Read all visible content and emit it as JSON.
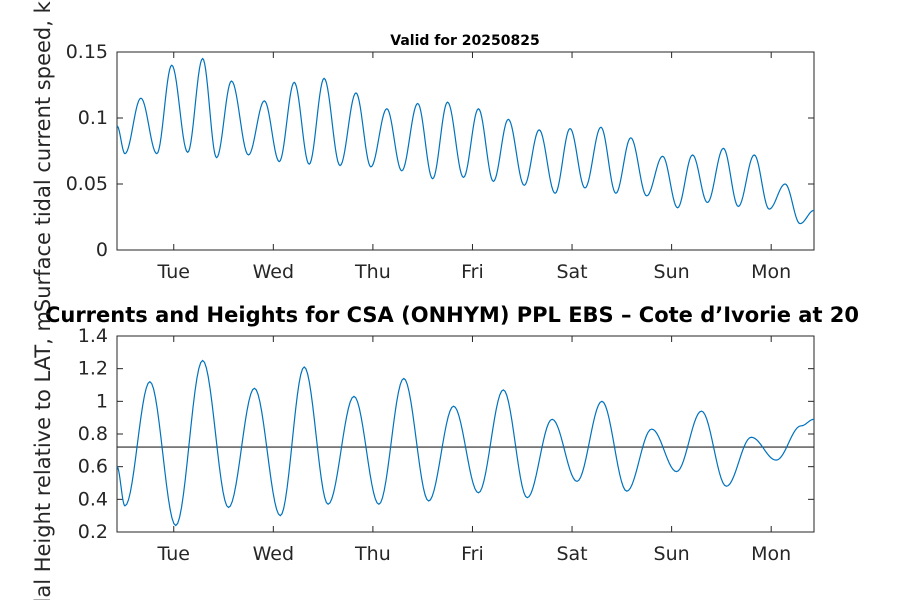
{
  "chart_data": [
    {
      "type": "line",
      "title": "Valid for 20250825",
      "ylabel": "Surface tidal current speed, kn",
      "xlabel": "",
      "xtick_labels": [
        "Tue",
        "Wed",
        "Thu",
        "Fri",
        "Sat",
        "Sun",
        "Mon"
      ],
      "xlim": [
        0,
        7
      ],
      "ylim": [
        0,
        0.15
      ],
      "yticks": [
        0,
        0.05,
        0.1,
        0.15
      ],
      "ytick_labels": [
        "0",
        "0.05",
        "0.1",
        "0.15"
      ],
      "grid": false,
      "series": [
        {
          "color": "#0072BD",
          "x": [
            0.0,
            0.08,
            0.24,
            0.4,
            0.55,
            0.71,
            0.86,
            1.0,
            1.15,
            1.32,
            1.48,
            1.63,
            1.78,
            1.93,
            2.08,
            2.24,
            2.4,
            2.55,
            2.71,
            2.86,
            3.02,
            3.17,
            3.32,
            3.48,
            3.63,
            3.78,
            3.93,
            4.09,
            4.24,
            4.4,
            4.55,
            4.7,
            4.86,
            5.01,
            5.16,
            5.32,
            5.48,
            5.63,
            5.78,
            5.93,
            6.09,
            6.24,
            6.4,
            6.55,
            6.71,
            6.86,
            7.0
          ],
          "y": [
            0.094,
            0.073,
            0.115,
            0.073,
            0.14,
            0.074,
            0.145,
            0.07,
            0.128,
            0.072,
            0.113,
            0.067,
            0.127,
            0.065,
            0.13,
            0.064,
            0.119,
            0.063,
            0.107,
            0.06,
            0.111,
            0.054,
            0.112,
            0.055,
            0.107,
            0.052,
            0.099,
            0.049,
            0.091,
            0.043,
            0.092,
            0.047,
            0.093,
            0.043,
            0.085,
            0.041,
            0.071,
            0.032,
            0.072,
            0.036,
            0.077,
            0.033,
            0.072,
            0.031,
            0.05,
            0.02,
            0.03
          ]
        }
      ]
    },
    {
      "type": "line",
      "title": "Currents and Heights for CSA (ONHYM) PPL EBS  – Cote d’Ivorie at 20",
      "ylabel": "Tidal Height relative to LAT, m",
      "xlabel": "",
      "xtick_labels": [
        "Tue",
        "Wed",
        "Thu",
        "Fri",
        "Sat",
        "Sun",
        "Mon"
      ],
      "xlim": [
        0,
        7
      ],
      "ylim": [
        0.2,
        1.4
      ],
      "yticks": [
        0.2,
        0.4,
        0.6,
        0.8,
        1.0,
        1.2,
        1.4
      ],
      "ytick_labels": [
        "0.2",
        "0.4",
        "0.6",
        "0.8",
        "1",
        "1.2",
        "1.4"
      ],
      "grid": false,
      "reference_line": 0.72,
      "series": [
        {
          "color": "#0072BD",
          "x": [
            0.0,
            0.08,
            0.33,
            0.59,
            0.86,
            1.12,
            1.38,
            1.64,
            1.88,
            2.12,
            2.38,
            2.63,
            2.88,
            3.13,
            3.38,
            3.63,
            3.88,
            4.12,
            4.37,
            4.62,
            4.87,
            5.12,
            5.37,
            5.62,
            5.87,
            6.12,
            6.37,
            6.62,
            6.87,
            7.0
          ],
          "y": [
            0.6,
            0.36,
            1.12,
            0.24,
            1.25,
            0.35,
            1.08,
            0.3,
            1.21,
            0.37,
            1.03,
            0.37,
            1.14,
            0.39,
            0.97,
            0.44,
            1.07,
            0.41,
            0.89,
            0.51,
            1.0,
            0.45,
            0.83,
            0.57,
            0.94,
            0.48,
            0.78,
            0.64,
            0.85,
            0.89
          ]
        }
      ]
    }
  ]
}
